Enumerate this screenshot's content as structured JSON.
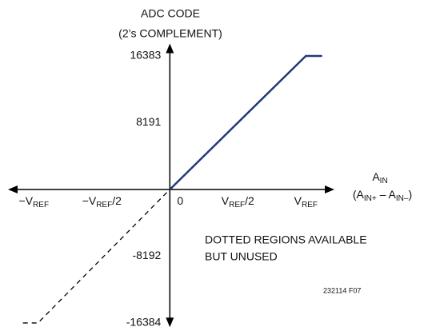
{
  "chart_data": {
    "type": "line",
    "ylabel": [
      "ADC CODE",
      "(2’s COMPLEMENT)"
    ],
    "xlabel": [
      "A",
      "IN"
    ],
    "xlabel2": [
      "(A",
      "IN+",
      " – A",
      "IN–",
      ")"
    ],
    "annotations": [
      "DOTTED REGIONS AVAILABLE",
      "BUT UNUSED"
    ],
    "figure_id": "232114 F07",
    "xlim": [
      -1.19,
      1.21
    ],
    "ylim": [
      -16800,
      17900
    ],
    "xticks": [
      {
        "value": -1,
        "label": "−V",
        "sub": "REF"
      },
      {
        "value": -0.5,
        "label": "−V",
        "sub": "REF",
        "suffix": "/2"
      },
      {
        "value": 0,
        "label": "0"
      },
      {
        "value": 0.5,
        "label": "V",
        "sub": "REF",
        "suffix": "/2"
      },
      {
        "value": 1,
        "label": "V",
        "sub": "REF"
      }
    ],
    "yticks": [
      16383,
      8191,
      -8192,
      -16384
    ],
    "series": [
      {
        "color": "#1f3a7a",
        "dashed": false,
        "x": [
          0,
          1,
          1.12
        ],
        "values": [
          0,
          16383,
          16383
        ]
      },
      {
        "color": "#000000",
        "dashed": true,
        "x": [
          -1.08,
          -0.97,
          0
        ],
        "values": [
          -16384,
          -16384,
          0
        ]
      }
    ]
  }
}
